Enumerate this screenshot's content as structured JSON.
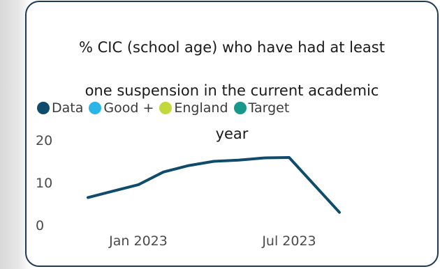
{
  "chart_data": {
    "type": "line",
    "title": "% CIC (school age) who have had at least one suspension in the current academic year",
    "title_lines": [
      "% CIC (school age) who have had at least",
      "one suspension in the current academic",
      "year"
    ],
    "legend": [
      {
        "name": "Data",
        "color": "#0f4c6b"
      },
      {
        "name": "Good +",
        "color": "#29b5e8"
      },
      {
        "name": "England",
        "color": "#c3d93b"
      },
      {
        "name": "Target",
        "color": "#16998a"
      }
    ],
    "legend_placement": "top-left",
    "x": [
      "2022-11",
      "2022-12",
      "2023-01",
      "2023-02",
      "2023-03",
      "2023-04",
      "2023-05",
      "2023-06",
      "2023-07",
      "2023-08",
      "2023-09"
    ],
    "series": [
      {
        "name": "Data",
        "color": "#0f4c6b",
        "values": [
          6.5,
          8,
          9.5,
          12.5,
          14,
          15,
          15.3,
          15.8,
          15.9,
          null,
          3
        ]
      }
    ],
    "x_ticks": [
      {
        "label": "Jan 2023",
        "x": "2023-01"
      },
      {
        "label": "Jul 2023",
        "x": "2023-07"
      }
    ],
    "y_ticks": [
      0,
      10,
      20
    ],
    "ylim": [
      0,
      20
    ],
    "grid": false,
    "xlabel": "",
    "ylabel": ""
  }
}
